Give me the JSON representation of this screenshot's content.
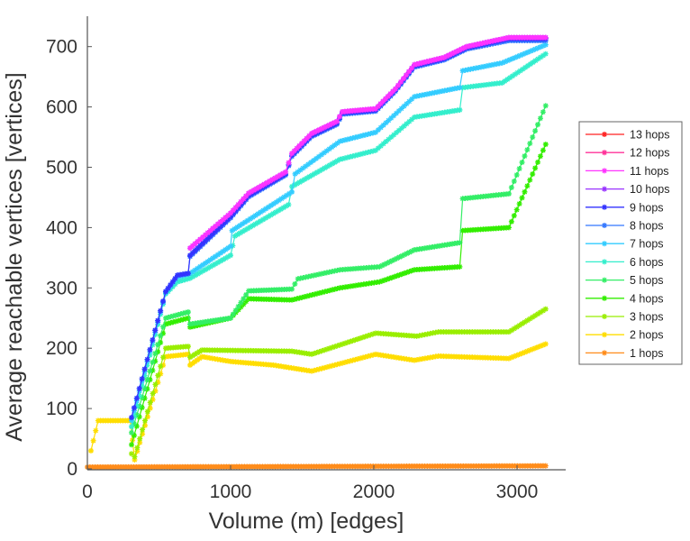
{
  "chart_data": {
    "type": "line",
    "title": "",
    "xlabel": "Volume (m) [edges]",
    "ylabel": "Average reachable vertices [vertices]",
    "xlim": [
      0,
      3350
    ],
    "ylim": [
      0,
      750
    ],
    "xticks": [
      0,
      1000,
      2000,
      3000
    ],
    "xtick_labels": [
      "0",
      "1000",
      "2000",
      "3000"
    ],
    "yticks": [
      0,
      100,
      200,
      300,
      400,
      500,
      600,
      700
    ],
    "ytick_labels": [
      "0",
      "100",
      "200",
      "300",
      "400",
      "500",
      "600",
      "700"
    ],
    "grid": false,
    "legend_position": "right",
    "marker": "asterisk",
    "series": [
      {
        "name": "1 hops",
        "color": "#ff8c1a",
        "x": [
          0,
          3200
        ],
        "y": [
          3,
          5
        ]
      },
      {
        "name": "2 hops",
        "color": "#ffdd00",
        "x": [
          25,
          75,
          300,
          330,
          547,
          704,
          717,
          800,
          1000,
          1300,
          1566,
          2013,
          2283,
          2450,
          2943,
          3200
        ],
        "y": [
          30,
          80,
          80,
          15,
          186,
          190,
          172,
          186,
          178,
          172,
          162,
          190,
          180,
          187,
          183,
          207
        ]
      },
      {
        "name": "3 hops",
        "color": "#99ee00",
        "x": [
          308,
          330,
          547,
          704,
          717,
          800,
          1428,
          1566,
          2013,
          2300,
          2450,
          2943,
          3200
        ],
        "y": [
          25,
          20,
          200,
          203,
          185,
          197,
          195,
          190,
          225,
          220,
          227,
          227,
          265
        ]
      },
      {
        "name": "4 hops",
        "color": "#33ee00",
        "x": [
          308,
          547,
          704,
          717,
          1000,
          1126,
          1428,
          1763,
          2040,
          2283,
          2600,
          2620,
          2943,
          3200
        ],
        "y": [
          40,
          240,
          250,
          235,
          250,
          282,
          280,
          300,
          310,
          330,
          335,
          395,
          400,
          538
        ]
      },
      {
        "name": "5 hops",
        "color": "#33ee66",
        "x": [
          308,
          547,
          704,
          717,
          1000,
          1126,
          1428,
          1470,
          1763,
          2040,
          2283,
          2600,
          2620,
          2943,
          3200
        ],
        "y": [
          60,
          250,
          260,
          240,
          250,
          295,
          298,
          315,
          330,
          335,
          363,
          375,
          448,
          456,
          602
        ]
      },
      {
        "name": "6 hops",
        "color": "#33eecc",
        "x": [
          308,
          547,
          629,
          717,
          1000,
          1030,
          1405,
          1428,
          1763,
          2013,
          2283,
          2600,
          2620,
          2897,
          3200
        ],
        "y": [
          70,
          290,
          310,
          316,
          354,
          386,
          438,
          468,
          513,
          528,
          583,
          595,
          632,
          640,
          688
        ]
      },
      {
        "name": "7 hops",
        "color": "#33ccff",
        "x": [
          308,
          547,
          629,
          717,
          1000,
          1010,
          1428,
          1450,
          1763,
          2013,
          2283,
          2600,
          2620,
          2897,
          3200
        ],
        "y": [
          80,
          292,
          318,
          324,
          369,
          395,
          459,
          489,
          543,
          558,
          617,
          632,
          660,
          673,
          703
        ]
      },
      {
        "name": "8 hops",
        "color": "#3377ff",
        "x": [
          308,
          547,
          629,
          704,
          717,
          1000,
          1126,
          1384,
          1428,
          1566,
          1742,
          1780,
          2013,
          2151,
          2283,
          2491,
          2648,
          2943,
          3200
        ],
        "y": [
          85,
          294,
          321,
          324,
          352,
          416,
          451,
          487,
          518,
          551,
          571,
          588,
          593,
          626,
          666,
          678,
          696,
          710,
          710
        ]
      },
      {
        "name": "9 hops",
        "color": "#3333ff",
        "x": [
          308,
          547,
          629,
          704,
          717,
          1000,
          1126,
          1384,
          1428,
          1566,
          1742,
          1780,
          2013,
          2151,
          2283,
          2491,
          2648,
          2943,
          3200
        ],
        "y": [
          85,
          294,
          321,
          324,
          354,
          418,
          453,
          489,
          520,
          553,
          573,
          590,
          595,
          628,
          668,
          680,
          698,
          713,
          713
        ]
      },
      {
        "name": "10 hops",
        "color": "#9933ff",
        "x": [
          717,
          1000,
          1126,
          1384,
          1428,
          1566,
          1742,
          1780,
          2013,
          2151,
          2283,
          2491,
          2648,
          2943,
          3200
        ],
        "y": [
          366,
          424,
          457,
          492,
          523,
          556,
          576,
          592,
          597,
          630,
          670,
          682,
          700,
          715,
          715
        ]
      },
      {
        "name": "11 hops",
        "color": "#ff33ff",
        "x": [
          717,
          1000,
          1126,
          1384,
          1428,
          1566,
          1742,
          1780,
          2013,
          2151,
          2283,
          2491,
          2648,
          2943,
          3200
        ],
        "y": [
          366,
          424,
          457,
          492,
          523,
          556,
          576,
          592,
          597,
          630,
          670,
          682,
          700,
          715,
          715
        ]
      },
      {
        "name": "12 hops",
        "color": "#ff3399",
        "x": [],
        "y": []
      },
      {
        "name": "13 hops",
        "color": "#ff2222",
        "x": [],
        "y": []
      }
    ]
  }
}
